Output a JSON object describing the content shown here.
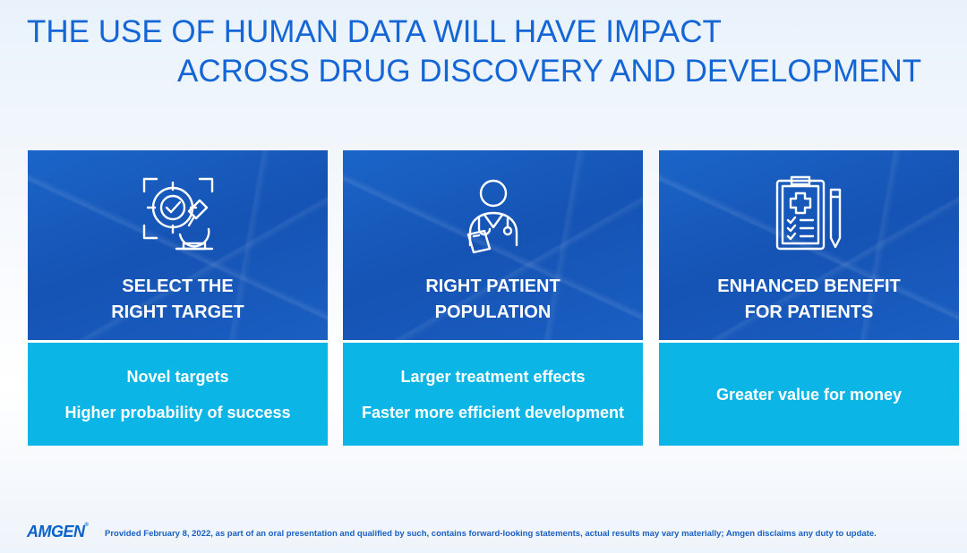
{
  "title": {
    "line1": "THE USE OF HUMAN DATA WILL HAVE IMPACT",
    "line2": "ACROSS DRUG DISCOVERY AND DEVELOPMENT"
  },
  "cards": [
    {
      "icon": "target-microscope-icon",
      "heading": [
        "SELECT THE",
        "RIGHT TARGET"
      ],
      "points": [
        "Novel targets",
        "Higher probability of success"
      ]
    },
    {
      "icon": "doctor-icon",
      "heading": [
        "RIGHT PATIENT",
        "POPULATION"
      ],
      "points": [
        "Larger treatment effects",
        "Faster more efficient development"
      ]
    },
    {
      "icon": "clipboard-checklist-icon",
      "heading": [
        "ENHANCED BENEFIT",
        "FOR PATIENTS"
      ],
      "points": [
        "Greater value for money"
      ]
    }
  ],
  "footer": {
    "logo": "AMGEN",
    "logo_mark": "®",
    "disclaimer": "Provided February 8, 2022, as part of an oral presentation and qualified by such, contains forward-looking statements, actual results may vary materially; Amgen disclaims any duty to update."
  },
  "colors": {
    "title": "#1466d6",
    "card_top": "#1553b4",
    "card_bottom": "#0bb5e6"
  }
}
